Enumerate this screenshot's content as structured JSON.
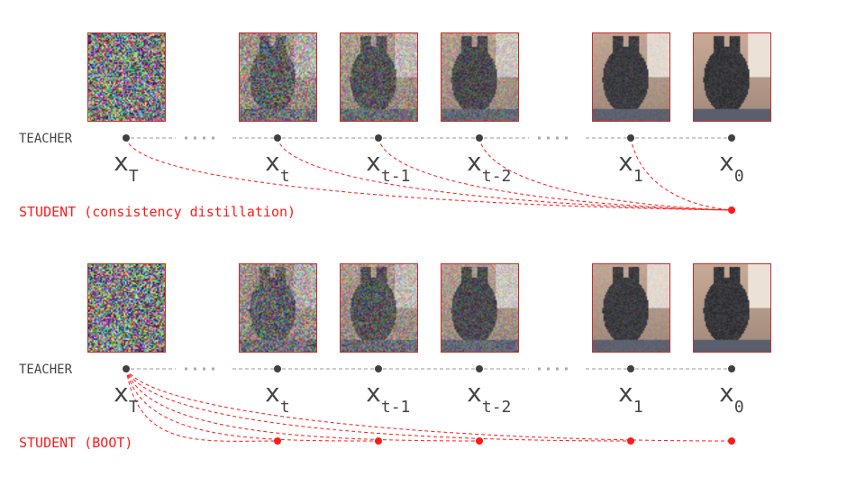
{
  "panels": [
    {
      "teacher_label": "TEACHER",
      "student_label": "STUDENT (consistency distillation)",
      "mode": "consistency"
    },
    {
      "teacher_label": "TEACHER",
      "student_label": "STUDENT (BOOT)",
      "mode": "boot"
    }
  ],
  "steps": [
    {
      "base": "x",
      "sub": "T",
      "noise": 1.0
    },
    {
      "base": "x",
      "sub": "t",
      "noise": 0.55
    },
    {
      "base": "x",
      "sub": "t-1",
      "noise": 0.4
    },
    {
      "base": "x",
      "sub": "t-2",
      "noise": 0.28
    },
    {
      "base": "x",
      "sub": "1",
      "noise": 0.08
    },
    {
      "base": "x",
      "sub": "0",
      "noise": 0.0
    }
  ],
  "colors": {
    "teacher": "#404040",
    "student": "#ff1a1a",
    "trajectory": "#999999"
  }
}
